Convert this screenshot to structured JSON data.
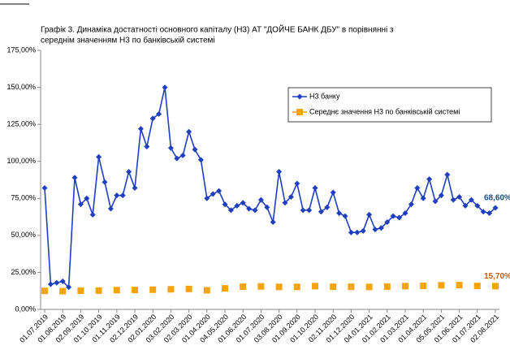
{
  "chart_data": {
    "type": "line",
    "title": [
      "Графік 3. Динаміка достатності основного капіталу (Н3) АТ \"ДОЙЧЕ БАНК ДБУ\" в порівнянні з",
      "середнім значенням Н3 по банківській системі"
    ],
    "categories": [
      "01.07.2019",
      null,
      null,
      "01.08.2019",
      null,
      null,
      "02.09.2019",
      null,
      null,
      "01.10.2019",
      null,
      null,
      "01.11.2019",
      null,
      null,
      "02.12.2019",
      null,
      null,
      "02.01.2020",
      null,
      null,
      "03.02.2020",
      null,
      null,
      "02.03.2020",
      null,
      null,
      "01.04.2020",
      null,
      null,
      "04.05.2020",
      null,
      null,
      "01.06.2020",
      null,
      null,
      "01.07.2020",
      null,
      null,
      "03.08.2020",
      null,
      null,
      "01.09.2020",
      null,
      null,
      "01.10.2020",
      null,
      null,
      "02.11.2020",
      null,
      null,
      "01.12.2020",
      null,
      null,
      "04.01.2021",
      null,
      null,
      "01.02.2021",
      null,
      null,
      "01.03.2021",
      null,
      null,
      "01.04.2021",
      null,
      null,
      "05.05.2021",
      null,
      null,
      "01.06.2021",
      null,
      null,
      "01.07.2021",
      null,
      null,
      "02.08.2021"
    ],
    "series": [
      {
        "name": "Н3 банку",
        "color": "#1f3fbf",
        "marker": "diamond",
        "values": [
          82,
          17,
          18,
          19,
          15,
          89,
          71,
          75,
          64,
          103,
          86,
          68,
          77,
          77,
          93,
          82,
          122,
          110,
          129,
          132,
          150,
          109,
          102,
          104,
          120,
          108,
          101,
          75,
          78,
          80,
          71,
          67,
          70,
          72,
          68,
          67,
          74,
          69,
          59,
          93,
          72,
          76,
          85,
          67,
          67,
          82,
          66,
          69,
          79,
          65,
          63,
          52,
          52,
          53,
          64,
          54,
          55,
          59,
          63,
          62,
          65,
          71,
          82,
          75,
          88,
          73,
          77,
          91,
          74,
          76,
          70,
          74,
          70,
          66,
          65,
          68.6
        ],
        "value_labels": [
          null,
          null,
          null,
          null,
          null,
          null,
          null,
          null,
          null,
          null,
          null,
          null,
          null,
          null,
          null,
          null,
          null,
          null,
          null,
          null,
          null,
          null,
          null,
          null,
          null,
          null,
          null,
          null,
          null,
          null,
          null,
          null,
          null,
          null,
          null,
          null,
          null,
          null,
          null,
          null,
          null,
          null,
          null,
          null,
          null,
          null,
          null,
          null,
          null,
          null,
          null,
          null,
          null,
          null,
          null,
          null,
          null,
          null,
          null,
          null,
          null,
          null,
          null,
          null,
          null,
          null,
          null,
          null,
          null,
          null,
          null,
          null,
          null,
          null,
          null,
          "68,60%"
        ],
        "label_color": "#1f4e79"
      },
      {
        "name": "Середнє значення Н3 по банківській системі",
        "color": "#f5a30f",
        "marker": "square",
        "values": [
          12.5,
          null,
          null,
          12.3,
          null,
          null,
          12.6,
          null,
          null,
          12.7,
          null,
          null,
          13.0,
          null,
          null,
          13.1,
          null,
          null,
          13.3,
          null,
          null,
          13.6,
          null,
          null,
          13.8,
          null,
          null,
          12.9,
          null,
          null,
          14.2,
          null,
          null,
          15.3,
          null,
          null,
          15.5,
          null,
          null,
          15.2,
          null,
          null,
          15.2,
          null,
          null,
          15.7,
          null,
          null,
          15.3,
          null,
          null,
          15.3,
          null,
          null,
          15.2,
          null,
          null,
          15.4,
          null,
          null,
          15.7,
          null,
          null,
          15.9,
          null,
          null,
          16.3,
          null,
          null,
          16.4,
          null,
          null,
          15.8,
          null,
          null,
          15.7
        ],
        "value_labels": [
          null,
          null,
          null,
          null,
          null,
          null,
          null,
          null,
          null,
          null,
          null,
          null,
          null,
          null,
          null,
          null,
          null,
          null,
          null,
          null,
          null,
          null,
          null,
          null,
          null,
          null,
          null,
          null,
          null,
          null,
          null,
          null,
          null,
          null,
          null,
          null,
          null,
          null,
          null,
          null,
          null,
          null,
          null,
          null,
          null,
          null,
          null,
          null,
          null,
          null,
          null,
          null,
          null,
          null,
          null,
          null,
          null,
          null,
          null,
          null,
          null,
          null,
          null,
          null,
          null,
          null,
          null,
          null,
          null,
          null,
          null,
          null,
          null,
          null,
          null,
          "15,70%"
        ],
        "label_color": "#c55a11"
      }
    ],
    "ylim": [
      0,
      175
    ],
    "yticks": [
      {
        "value": 0,
        "label": "0,00%"
      },
      {
        "value": 25,
        "label": "25,00%"
      },
      {
        "value": 50,
        "label": "50,00%"
      },
      {
        "value": 75,
        "label": "75,00%"
      },
      {
        "value": 100,
        "label": "100,00%"
      },
      {
        "value": 125,
        "label": "125,00%"
      },
      {
        "value": 150,
        "label": "150,00%"
      },
      {
        "value": 175,
        "label": "175,00%"
      }
    ],
    "grid": false,
    "legend": "upper right"
  }
}
